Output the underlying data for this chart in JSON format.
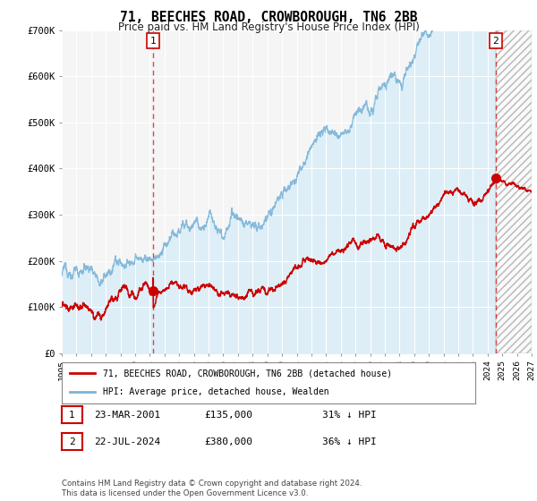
{
  "title": "71, BEECHES ROAD, CROWBOROUGH, TN6 2BB",
  "subtitle": "Price paid vs. HM Land Registry's House Price Index (HPI)",
  "hpi_label": "HPI: Average price, detached house, Wealden",
  "property_label": "71, BEECHES ROAD, CROWBOROUGH, TN6 2BB (detached house)",
  "hpi_color": "#7ab4d8",
  "hpi_fill_color": "#ddeef7",
  "property_color": "#cc0000",
  "sale1_date": "23-MAR-2001",
  "sale1_price": 135000,
  "sale1_year": 2001.22,
  "sale1_pct": "31% ↓ HPI",
  "sale2_date": "22-JUL-2024",
  "sale2_price": 380000,
  "sale2_year": 2024.55,
  "sale2_pct": "36% ↓ HPI",
  "ylim_min": 0,
  "ylim_max": 700000,
  "xmin": 1995,
  "xmax": 2027,
  "background_color": "#ffffff",
  "plot_bg_color": "#f5f5f5",
  "grid_color": "#ffffff",
  "footer": "Contains HM Land Registry data © Crown copyright and database right 2024.\nThis data is licensed under the Open Government Licence v3.0."
}
